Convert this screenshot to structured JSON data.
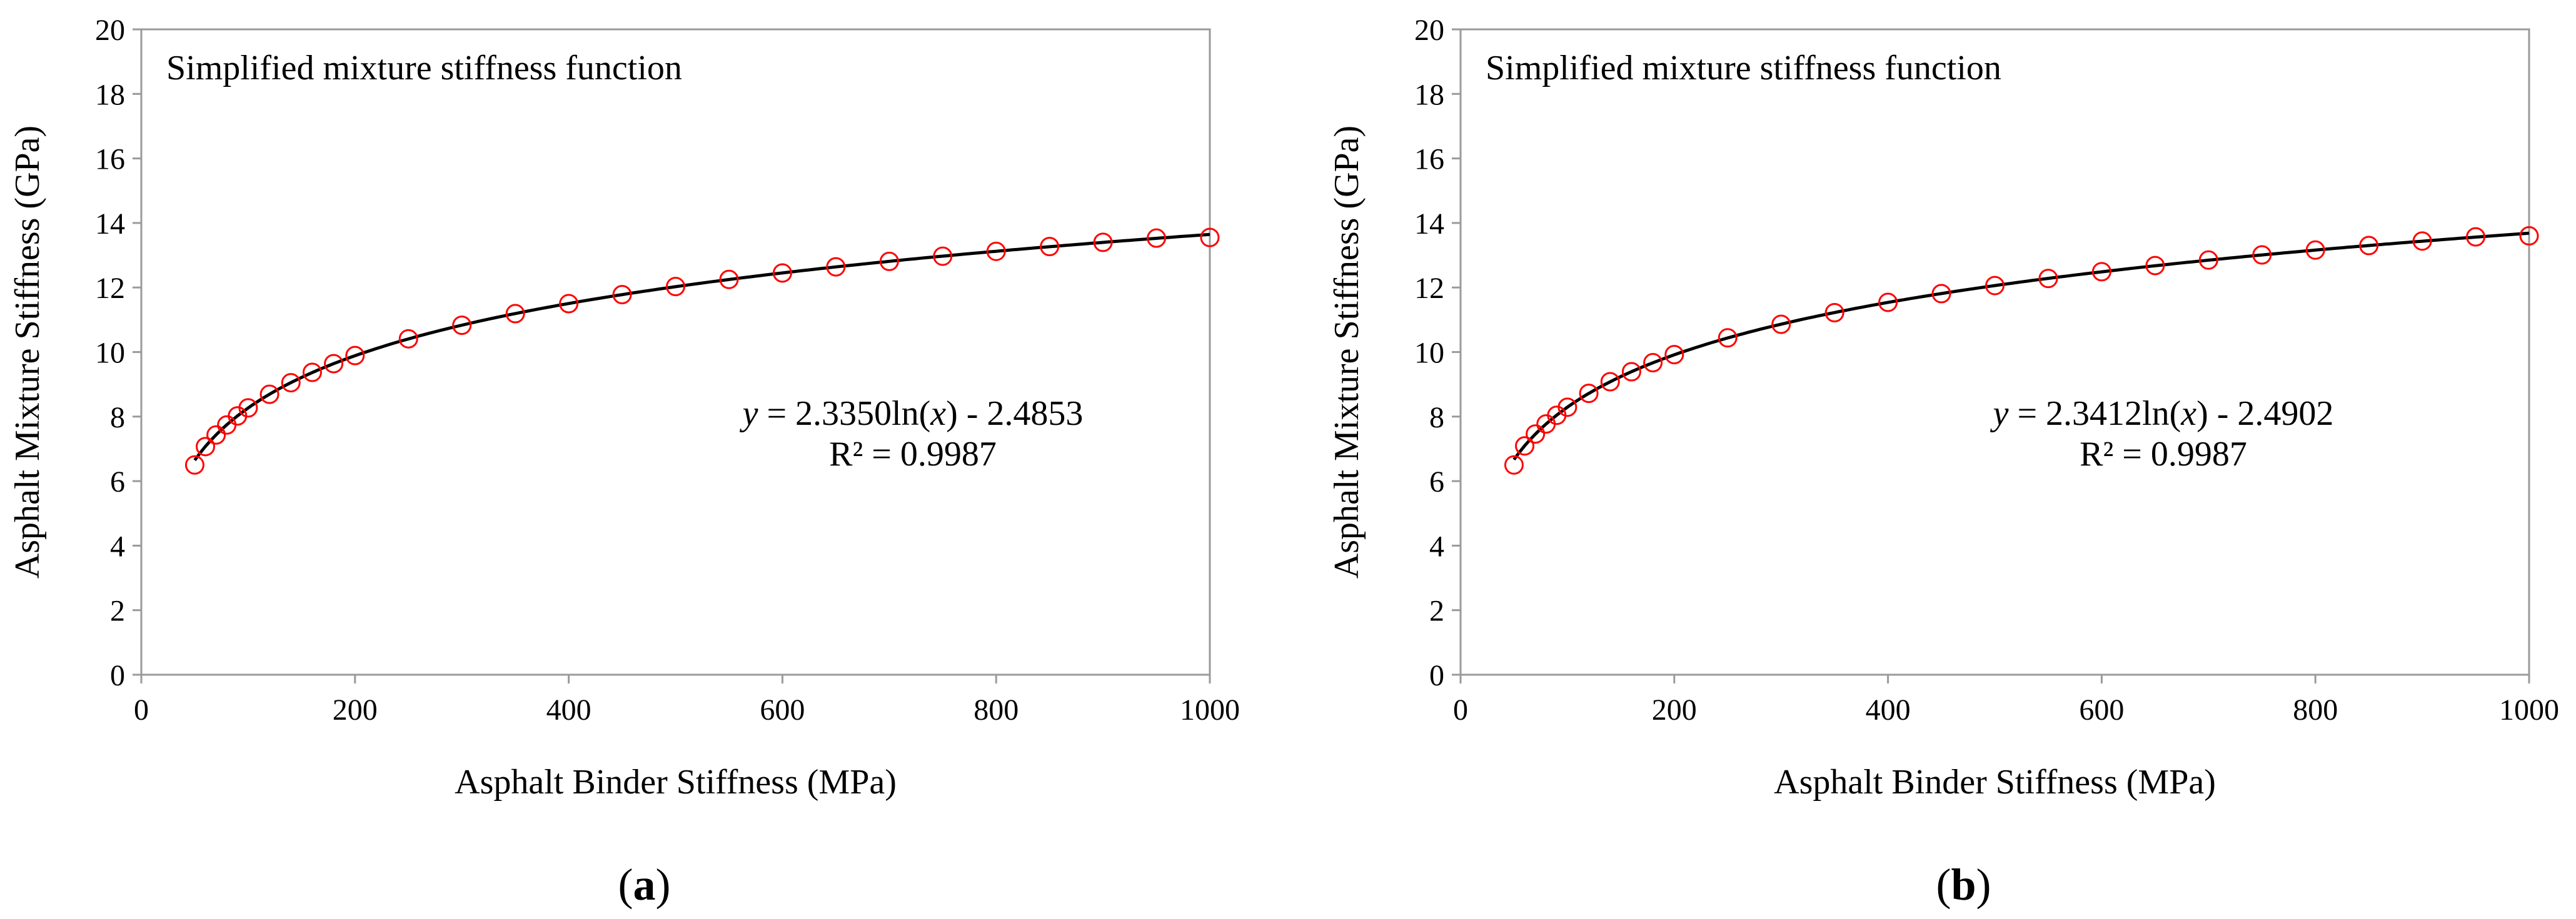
{
  "chart_data": [
    {
      "type": "scatter",
      "panel_label": "a",
      "panel_label_open": "(",
      "panel_label_close": ")",
      "annotation": "Simplified mixture stiffness function",
      "equation": {
        "y_symbol": "y",
        "rhs": " = 2.3350ln(",
        "x_symbol": "x",
        "tail": ") - 2.4853"
      },
      "r_squared": "R² = 0.9987",
      "xlabel": "Asphalt Binder Stiffness (MPa)",
      "ylabel": "Asphalt Mixture Stiffness (GPa)",
      "xlim": [
        0,
        1000
      ],
      "ylim": [
        0,
        20
      ],
      "xticks": [
        "0",
        "200",
        "400",
        "600",
        "800",
        "1000"
      ],
      "yticks": [
        "0",
        "2",
        "4",
        "6",
        "8",
        "10",
        "12",
        "14",
        "16",
        "18",
        "20"
      ],
      "grid": false,
      "legend": "none",
      "marker_color": "#ff0000",
      "trendline_color": "#000000",
      "fit": {
        "kind": "logarithmic",
        "a": 2.335,
        "b": -2.4853
      },
      "x": [
        50,
        60,
        70,
        80,
        90,
        100,
        120,
        140,
        160,
        180,
        200,
        250,
        300,
        350,
        400,
        450,
        500,
        550,
        600,
        650,
        700,
        750,
        800,
        850,
        900,
        950,
        1000
      ],
      "y": [
        6.5,
        7.07,
        7.43,
        7.74,
        8.02,
        8.27,
        8.69,
        9.05,
        9.37,
        9.64,
        9.89,
        10.41,
        10.83,
        11.19,
        11.5,
        11.78,
        12.03,
        12.25,
        12.45,
        12.64,
        12.81,
        12.97,
        13.12,
        13.27,
        13.4,
        13.53,
        13.55
      ]
    },
    {
      "type": "scatter",
      "panel_label": "b",
      "panel_label_open": "(",
      "panel_label_close": ")",
      "annotation": "Simplified mixture stiffness function",
      "equation": {
        "y_symbol": "y",
        "rhs": " = 2.3412ln(",
        "x_symbol": "x",
        "tail": ") - 2.4902"
      },
      "r_squared": "R² = 0.9987",
      "xlabel": "Asphalt Binder Stiffness (MPa)",
      "ylabel": "Asphalt Mixture Stiffness (GPa)",
      "xlim": [
        0,
        1000
      ],
      "ylim": [
        0,
        20
      ],
      "xticks": [
        "0",
        "200",
        "400",
        "600",
        "800",
        "1000"
      ],
      "yticks": [
        "0",
        "2",
        "4",
        "6",
        "8",
        "10",
        "12",
        "14",
        "16",
        "18",
        "20"
      ],
      "grid": false,
      "legend": "none",
      "marker_color": "#ff0000",
      "trendline_color": "#000000",
      "fit": {
        "kind": "logarithmic",
        "a": 2.3412,
        "b": -2.4902
      },
      "x": [
        50,
        60,
        70,
        80,
        90,
        100,
        120,
        140,
        160,
        180,
        200,
        250,
        300,
        350,
        400,
        450,
        500,
        550,
        600,
        650,
        700,
        750,
        800,
        850,
        900,
        950,
        1000
      ],
      "y": [
        6.5,
        7.09,
        7.46,
        7.77,
        8.04,
        8.29,
        8.72,
        9.08,
        9.39,
        9.67,
        9.92,
        10.44,
        10.86,
        11.22,
        11.54,
        11.81,
        12.06,
        12.28,
        12.49,
        12.68,
        12.85,
        13.01,
        13.16,
        13.3,
        13.44,
        13.57,
        13.6
      ]
    }
  ]
}
